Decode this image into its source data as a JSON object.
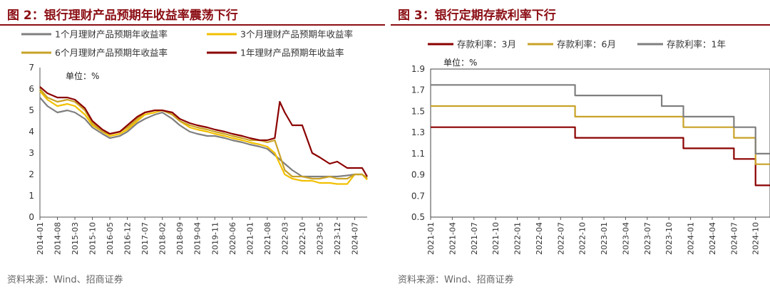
{
  "figures": [
    {
      "title": "图 2：银行理财产品预期年收益率震荡下行",
      "source": "资料来源：Wind、招商证券"
    },
    {
      "title": "图 3：银行定期存款利率下行",
      "source": "资料来源：Wind、招商证券"
    }
  ],
  "chart_data": [
    {
      "type": "line",
      "title": "图 2：银行理财产品预期年收益率震荡下行",
      "unit_label": "单位：%",
      "ylim": [
        0,
        7
      ],
      "yticks": [
        "0",
        "1",
        "2",
        "3",
        "4",
        "5",
        "6",
        "7"
      ],
      "xticks": [
        "2014-01",
        "2014-08",
        "2015-03",
        "2015-10",
        "2016-05",
        "2016-12",
        "2017-07",
        "2018-02",
        "2018-09",
        "2019-04",
        "2019-11",
        "2020-06",
        "2021-01",
        "2021-08",
        "2022-03",
        "2022-10",
        "2023-05",
        "2023-12",
        "2024-07"
      ],
      "x_range": [
        "2014-01",
        "2024-12"
      ],
      "series": [
        {
          "name": "1个月理财产品预期年收益率",
          "color": "#7f7f7f",
          "points": [
            [
              "2014-01",
              5.6
            ],
            [
              "2014-04",
              5.2
            ],
            [
              "2014-08",
              4.9
            ],
            [
              "2014-12",
              5.0
            ],
            [
              "2015-03",
              4.9
            ],
            [
              "2015-07",
              4.6
            ],
            [
              "2015-10",
              4.2
            ],
            [
              "2016-02",
              3.9
            ],
            [
              "2016-05",
              3.7
            ],
            [
              "2016-09",
              3.8
            ],
            [
              "2016-12",
              4.0
            ],
            [
              "2017-04",
              4.4
            ],
            [
              "2017-07",
              4.6
            ],
            [
              "2017-11",
              4.8
            ],
            [
              "2018-02",
              4.9
            ],
            [
              "2018-06",
              4.6
            ],
            [
              "2018-09",
              4.3
            ],
            [
              "2019-01",
              4.0
            ],
            [
              "2019-04",
              3.9
            ],
            [
              "2019-08",
              3.8
            ],
            [
              "2019-11",
              3.8
            ],
            [
              "2020-03",
              3.7
            ],
            [
              "2020-06",
              3.6
            ],
            [
              "2020-10",
              3.5
            ],
            [
              "2021-01",
              3.4
            ],
            [
              "2021-05",
              3.3
            ],
            [
              "2021-08",
              3.2
            ],
            [
              "2021-11",
              2.9
            ],
            [
              "2022-03",
              2.5
            ],
            [
              "2022-06",
              2.2
            ],
            [
              "2022-10",
              1.9
            ],
            [
              "2023-02",
              1.9
            ],
            [
              "2023-05",
              1.9
            ],
            [
              "2023-09",
              1.9
            ],
            [
              "2023-12",
              1.9
            ],
            [
              "2024-04",
              1.95
            ],
            [
              "2024-07",
              2.0
            ],
            [
              "2024-10",
              2.0
            ],
            [
              "2024-12",
              1.8
            ]
          ]
        },
        {
          "name": "3个月理财产品预期年收益率",
          "color": "#f2c000",
          "points": [
            [
              "2014-01",
              5.9
            ],
            [
              "2014-04",
              5.5
            ],
            [
              "2014-08",
              5.2
            ],
            [
              "2014-12",
              5.3
            ],
            [
              "2015-03",
              5.2
            ],
            [
              "2015-07",
              4.8
            ],
            [
              "2015-10",
              4.3
            ],
            [
              "2016-02",
              4.0
            ],
            [
              "2016-05",
              3.8
            ],
            [
              "2016-09",
              3.9
            ],
            [
              "2016-12",
              4.1
            ],
            [
              "2017-04",
              4.5
            ],
            [
              "2017-07",
              4.8
            ],
            [
              "2017-11",
              4.9
            ],
            [
              "2018-02",
              5.0
            ],
            [
              "2018-06",
              4.8
            ],
            [
              "2018-09",
              4.5
            ],
            [
              "2019-01",
              4.2
            ],
            [
              "2019-04",
              4.1
            ],
            [
              "2019-08",
              4.0
            ],
            [
              "2019-11",
              3.9
            ],
            [
              "2020-03",
              3.8
            ],
            [
              "2020-06",
              3.7
            ],
            [
              "2020-10",
              3.6
            ],
            [
              "2021-01",
              3.5
            ],
            [
              "2021-05",
              3.4
            ],
            [
              "2021-08",
              3.3
            ],
            [
              "2021-11",
              3.0
            ],
            [
              "2022-03",
              2.0
            ],
            [
              "2022-06",
              1.8
            ],
            [
              "2022-10",
              1.7
            ],
            [
              "2023-02",
              1.7
            ],
            [
              "2023-05",
              1.6
            ],
            [
              "2023-09",
              1.6
            ],
            [
              "2023-12",
              1.55
            ],
            [
              "2024-04",
              1.55
            ],
            [
              "2024-07",
              2.0
            ],
            [
              "2024-10",
              2.0
            ],
            [
              "2024-12",
              1.75
            ]
          ]
        },
        {
          "name": "6个月理财产品预期年收益率",
          "color": "#c9a227",
          "points": [
            [
              "2014-01",
              6.0
            ],
            [
              "2014-04",
              5.6
            ],
            [
              "2014-08",
              5.4
            ],
            [
              "2014-12",
              5.5
            ],
            [
              "2015-03",
              5.4
            ],
            [
              "2015-07",
              5.0
            ],
            [
              "2015-10",
              4.4
            ],
            [
              "2016-02",
              4.0
            ],
            [
              "2016-05",
              3.9
            ],
            [
              "2016-09",
              4.0
            ],
            [
              "2016-12",
              4.2
            ],
            [
              "2017-04",
              4.6
            ],
            [
              "2017-07",
              4.9
            ],
            [
              "2017-11",
              5.0
            ],
            [
              "2018-02",
              5.0
            ],
            [
              "2018-06",
              4.8
            ],
            [
              "2018-09",
              4.5
            ],
            [
              "2019-01",
              4.3
            ],
            [
              "2019-04",
              4.2
            ],
            [
              "2019-08",
              4.1
            ],
            [
              "2019-11",
              4.0
            ],
            [
              "2020-03",
              3.9
            ],
            [
              "2020-06",
              3.8
            ],
            [
              "2020-10",
              3.7
            ],
            [
              "2021-01",
              3.6
            ],
            [
              "2021-05",
              3.6
            ],
            [
              "2021-08",
              3.5
            ],
            [
              "2021-11",
              3.6
            ],
            [
              "2022-03",
              2.2
            ],
            [
              "2022-06",
              1.9
            ],
            [
              "2022-10",
              1.9
            ],
            [
              "2023-02",
              1.8
            ],
            [
              "2023-05",
              1.8
            ],
            [
              "2023-09",
              1.9
            ],
            [
              "2023-12",
              1.8
            ],
            [
              "2024-04",
              1.8
            ],
            [
              "2024-07",
              2.0
            ],
            [
              "2024-10",
              2.0
            ],
            [
              "2024-12",
              1.85
            ]
          ]
        },
        {
          "name": "1年理财产品预期年收益率",
          "color": "#8b0000",
          "points": [
            [
              "2014-01",
              6.1
            ],
            [
              "2014-04",
              5.8
            ],
            [
              "2014-08",
              5.6
            ],
            [
              "2014-12",
              5.6
            ],
            [
              "2015-03",
              5.5
            ],
            [
              "2015-07",
              5.1
            ],
            [
              "2015-10",
              4.5
            ],
            [
              "2016-02",
              4.1
            ],
            [
              "2016-05",
              3.9
            ],
            [
              "2016-09",
              4.0
            ],
            [
              "2016-12",
              4.3
            ],
            [
              "2017-04",
              4.7
            ],
            [
              "2017-07",
              4.9
            ],
            [
              "2017-11",
              5.0
            ],
            [
              "2018-02",
              5.0
            ],
            [
              "2018-06",
              4.9
            ],
            [
              "2018-09",
              4.6
            ],
            [
              "2019-01",
              4.4
            ],
            [
              "2019-04",
              4.3
            ],
            [
              "2019-08",
              4.2
            ],
            [
              "2019-11",
              4.1
            ],
            [
              "2020-03",
              4.0
            ],
            [
              "2020-06",
              3.9
            ],
            [
              "2020-10",
              3.8
            ],
            [
              "2021-01",
              3.7
            ],
            [
              "2021-05",
              3.6
            ],
            [
              "2021-08",
              3.6
            ],
            [
              "2021-11",
              3.7
            ],
            [
              "2022-01",
              5.4
            ],
            [
              "2022-03",
              4.9
            ],
            [
              "2022-06",
              4.3
            ],
            [
              "2022-10",
              4.3
            ],
            [
              "2023-02",
              3.0
            ],
            [
              "2023-05",
              2.8
            ],
            [
              "2023-09",
              2.5
            ],
            [
              "2023-12",
              2.6
            ],
            [
              "2024-04",
              2.3
            ],
            [
              "2024-07",
              2.3
            ],
            [
              "2024-10",
              2.3
            ],
            [
              "2024-12",
              1.9
            ]
          ]
        }
      ]
    },
    {
      "type": "line",
      "step": true,
      "title": "图 3：银行定期存款利率下行",
      "unit_label": "单位：%",
      "ylim": [
        0.5,
        1.9
      ],
      "yticks": [
        "0.5",
        "0.7",
        "0.9",
        "1.1",
        "1.3",
        "1.5",
        "1.7",
        "1.9"
      ],
      "xticks": [
        "2021-01",
        "2021-04",
        "2021-07",
        "2021-10",
        "2022-01",
        "2022-04",
        "2022-07",
        "2022-10",
        "2023-01",
        "2023-04",
        "2023-07",
        "2023-10",
        "2024-01",
        "2024-04",
        "2024-07",
        "2024-10"
      ],
      "x_range": [
        "2021-01",
        "2024-12"
      ],
      "series": [
        {
          "name": "存款利率：3月",
          "color": "#8b0000",
          "points": [
            [
              "2021-01",
              1.35
            ],
            [
              "2022-09",
              1.35
            ],
            [
              "2022-09",
              1.25
            ],
            [
              "2023-12",
              1.25
            ],
            [
              "2023-12",
              1.15
            ],
            [
              "2024-07",
              1.15
            ],
            [
              "2024-07",
              1.05
            ],
            [
              "2024-10",
              1.05
            ],
            [
              "2024-10",
              0.8
            ],
            [
              "2024-12",
              0.8
            ]
          ]
        },
        {
          "name": "存款利率：6月",
          "color": "#c9a227",
          "points": [
            [
              "2021-01",
              1.55
            ],
            [
              "2022-09",
              1.55
            ],
            [
              "2022-09",
              1.45
            ],
            [
              "2023-12",
              1.45
            ],
            [
              "2023-12",
              1.35
            ],
            [
              "2024-07",
              1.35
            ],
            [
              "2024-07",
              1.25
            ],
            [
              "2024-10",
              1.25
            ],
            [
              "2024-10",
              1.0
            ],
            [
              "2024-12",
              1.0
            ]
          ]
        },
        {
          "name": "存款利率：1年",
          "color": "#7f7f7f",
          "points": [
            [
              "2021-01",
              1.75
            ],
            [
              "2022-09",
              1.75
            ],
            [
              "2022-09",
              1.65
            ],
            [
              "2023-09",
              1.65
            ],
            [
              "2023-09",
              1.55
            ],
            [
              "2023-12",
              1.55
            ],
            [
              "2023-12",
              1.45
            ],
            [
              "2024-07",
              1.45
            ],
            [
              "2024-07",
              1.35
            ],
            [
              "2024-10",
              1.35
            ],
            [
              "2024-10",
              1.1
            ],
            [
              "2024-12",
              1.1
            ]
          ]
        }
      ]
    }
  ]
}
